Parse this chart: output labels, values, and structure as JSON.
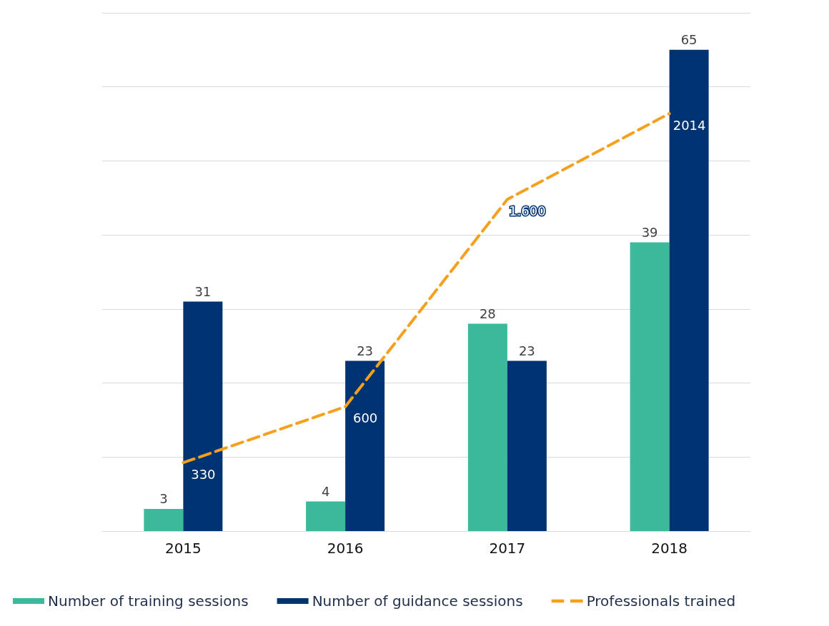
{
  "chart_data": {
    "type": "bar",
    "categories": [
      "2015",
      "2016",
      "2017",
      "2018"
    ],
    "series": [
      {
        "name": "Number of training sessions",
        "color": "#3bb99a",
        "values": [
          3,
          4,
          28,
          39
        ],
        "value_labels": [
          "3",
          "4",
          "28",
          "39"
        ]
      },
      {
        "name": "Number of guidance sessions",
        "color": "#003371",
        "values": [
          31,
          23,
          23,
          65
        ],
        "value_labels": [
          "31",
          "23",
          "23",
          "65"
        ]
      },
      {
        "name": "Professionals trained",
        "type": "line",
        "axis": "y2",
        "color": "#f7a01e",
        "values": [
          330,
          600,
          1600,
          2014
        ],
        "value_labels": [
          "330",
          "600",
          "1.600",
          "2014"
        ],
        "marker": "none",
        "line_style": "dashed"
      }
    ],
    "ylim": [
      0,
      70
    ],
    "yticks": [
      {
        "value": 0,
        "label": null
      },
      {
        "value": 10,
        "label": null
      },
      {
        "value": 20,
        "label": null
      },
      {
        "value": 30,
        "label": null
      },
      {
        "value": 40,
        "label": null
      },
      {
        "value": 50,
        "label": null
      },
      {
        "value": 60,
        "label": null
      },
      {
        "value": 70,
        "label": null
      }
    ],
    "y2lim": [
      0,
      2500
    ],
    "grid": "y",
    "tick_labels": "x",
    "legend": "bottom"
  }
}
